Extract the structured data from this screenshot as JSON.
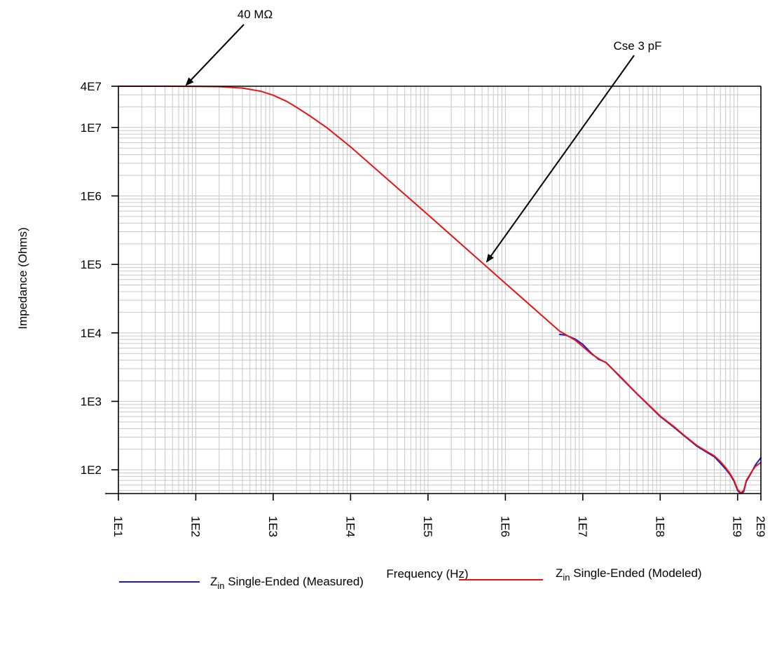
{
  "chart_data": {
    "type": "line",
    "title": "",
    "xlabel": "Frequency (Hz)",
    "ylabel": "Impedance (Ohms)",
    "x_scale": "log",
    "y_scale": "log",
    "xlim": [
      10,
      2000000000
    ],
    "ylim": [
      45,
      40000000
    ],
    "grid": true,
    "legend_position": "bottom",
    "x_ticks": [
      {
        "value": 10,
        "label": "1E1"
      },
      {
        "value": 100,
        "label": "1E2"
      },
      {
        "value": 1000,
        "label": "1E3"
      },
      {
        "value": 10000,
        "label": "1E4"
      },
      {
        "value": 100000,
        "label": "1E5"
      },
      {
        "value": 1000000,
        "label": "1E6"
      },
      {
        "value": 10000000,
        "label": "1E7"
      },
      {
        "value": 100000000,
        "label": "1E8"
      },
      {
        "value": 1000000000,
        "label": "1E9"
      },
      {
        "value": 2000000000,
        "label": "2E9"
      }
    ],
    "y_ticks": [
      {
        "value": 40000000,
        "label": "4E7"
      },
      {
        "value": 10000000,
        "label": "1E7"
      },
      {
        "value": 1000000,
        "label": "1E6"
      },
      {
        "value": 100000,
        "label": "1E5"
      },
      {
        "value": 10000,
        "label": "1E4"
      },
      {
        "value": 1000,
        "label": "1E3"
      },
      {
        "value": 100,
        "label": "1E2"
      }
    ],
    "series": [
      {
        "key": "measured",
        "color": "#1a1acc",
        "x": [
          5000000,
          6000000,
          8000000,
          10000000,
          13000000,
          16000000,
          20000000,
          30000000,
          50000000,
          80000000,
          100000000,
          150000000,
          200000000,
          300000000,
          400000000,
          500000000,
          600000000,
          700000000,
          800000000,
          900000000,
          1000000000,
          1100000000,
          1200000000,
          1300000000,
          1500000000,
          1700000000,
          2000000000
        ],
        "y": [
          9500,
          9300,
          8100,
          6800,
          5000,
          4100,
          3700,
          2300,
          1290,
          770,
          600,
          420,
          320,
          220,
          180,
          155,
          125,
          103,
          85,
          68,
          50,
          45,
          48,
          68,
          90,
          118,
          150
        ]
      },
      {
        "key": "modeled",
        "color": "#e81414",
        "x": [
          10,
          30,
          100,
          200,
          400,
          700,
          1000,
          1500,
          2000,
          3000,
          5000,
          10000,
          100000,
          1000000,
          3000000,
          5000000,
          8000000,
          10000000,
          13000000,
          16000000,
          20000000,
          30000000,
          50000000,
          80000000,
          100000000,
          150000000,
          200000000,
          300000000,
          400000000,
          500000000,
          600000000,
          700000000,
          800000000,
          900000000,
          1000000000,
          1100000000,
          1200000000,
          1300000000,
          1500000000,
          1700000000,
          2000000000
        ],
        "y": [
          40000000,
          40000000,
          39800000,
          39400000,
          37600000,
          33700000,
          29600000,
          24000000,
          19700000,
          14700000,
          9800000,
          5200000,
          530000,
          53000,
          17700,
          10600,
          7800,
          6300,
          4900,
          4200,
          3650,
          2350,
          1300,
          780,
          610,
          430,
          325,
          225,
          185,
          160,
          132,
          108,
          88,
          70,
          52,
          46,
          50,
          70,
          92,
          112,
          128
        ]
      }
    ],
    "annotations": [
      {
        "text": "40 MΩ",
        "point_x": 100,
        "point_y": 40000000
      },
      {
        "text": "Cse 3 pF",
        "point_x": 1000000,
        "point_y": 100000
      }
    ],
    "legend": [
      {
        "label_main": "Z",
        "label_sub": "in",
        "label_rest": " Single-Ended (Measured)",
        "color": "#1a1acc"
      },
      {
        "label_main": "Z",
        "label_sub": "in",
        "label_rest": " Single-Ended (Modeled)",
        "color": "#e81414"
      }
    ]
  }
}
